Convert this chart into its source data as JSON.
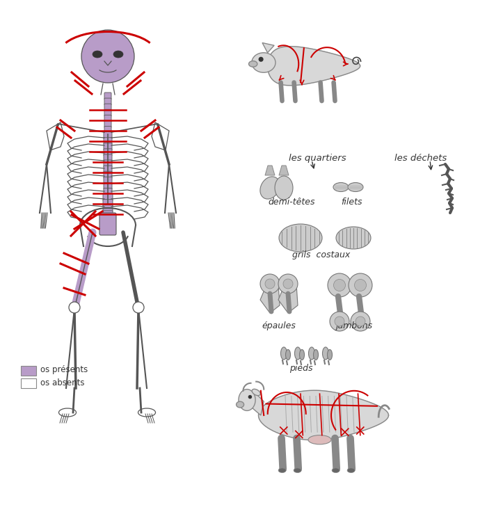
{
  "title": "",
  "bg_color": "#ffffff",
  "legend_items": [
    {
      "label": "os présents",
      "color": "#b89cc8"
    },
    {
      "label": "os absents",
      "color": "#ffffff"
    }
  ],
  "labels": {
    "les_quartiers": "les quartiers",
    "les_dechets": "les déchets",
    "demi_tetes": "demi-têtes",
    "filets": "filets",
    "grils_costaux": "grils  costaux",
    "epaules": "épaules",
    "jambons": "jambons",
    "pieds": "pieds"
  },
  "purple_color": "#b89cc8",
  "red_color": "#cc0000",
  "dark_color": "#333333",
  "outline_color": "#666666",
  "light_gray": "#d8d8d8"
}
